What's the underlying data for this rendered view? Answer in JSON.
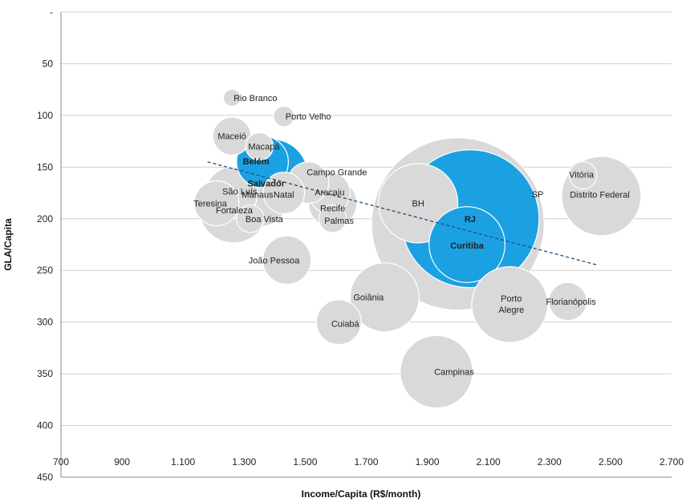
{
  "chart_data": {
    "type": "bubble",
    "xlabel": "Income/Capita  (R$/month)",
    "ylabel": "GLA/Capita",
    "xlim": [
      700,
      2700
    ],
    "ylim": [
      0,
      450
    ],
    "y_reversed": true,
    "x_ticks": [
      "700",
      "900",
      "1.100",
      "1.300",
      "1.500",
      "1.700",
      "1.900",
      "2.100",
      "2.300",
      "2.500",
      "2.700"
    ],
    "y_ticks": [
      "-",
      "50",
      "100",
      "150",
      "200",
      "250",
      "300",
      "350",
      "400",
      "450"
    ],
    "x_tick_values": [
      700,
      900,
      1100,
      1300,
      1500,
      1700,
      1900,
      2100,
      2300,
      2500,
      2700
    ],
    "y_tick_values": [
      0,
      50,
      100,
      150,
      200,
      250,
      300,
      350,
      400,
      450
    ],
    "grid": "horizontal",
    "trendline": {
      "style": "dashed",
      "color": "#1f4e79",
      "x": [
        1180,
        2460
      ],
      "y": [
        145,
        245
      ]
    },
    "colors": {
      "gray": "#d9d9d9",
      "highlight": "#1ba1e2",
      "grid": "#d0d0d0"
    },
    "points": [
      {
        "name": "SP",
        "x": 2000,
        "y": 205,
        "size": 50,
        "color": "gray"
      },
      {
        "name": "RJ",
        "x": 2040,
        "y": 200,
        "size": 40,
        "color": "highlight"
      },
      {
        "name": "BH",
        "x": 1870,
        "y": 185,
        "size": 23,
        "color": "gray"
      },
      {
        "name": "Curitiba",
        "x": 2030,
        "y": 225,
        "size": 22,
        "color": "highlight"
      },
      {
        "name": "Distrito Federal",
        "x": 2470,
        "y": 178,
        "size": 23,
        "color": "gray"
      },
      {
        "name": "Vitória",
        "x": 2410,
        "y": 158,
        "size": 8,
        "color": "gray"
      },
      {
        "name": "Porto Alegre",
        "x": 2170,
        "y": 283,
        "size": 22,
        "color": "gray"
      },
      {
        "name": "Florianópolis",
        "x": 2360,
        "y": 280,
        "size": 11,
        "color": "gray"
      },
      {
        "name": "Campinas",
        "x": 1930,
        "y": 348,
        "size": 21,
        "color": "gray"
      },
      {
        "name": "Goiânia",
        "x": 1760,
        "y": 276,
        "size": 20,
        "color": "gray"
      },
      {
        "name": "Cuiabá",
        "x": 1610,
        "y": 300,
        "size": 13,
        "color": "gray"
      },
      {
        "name": "João Pessoa",
        "x": 1440,
        "y": 240,
        "size": 14,
        "color": "gray"
      },
      {
        "name": "Palmas",
        "x": 1590,
        "y": 200,
        "size": 8,
        "color": "gray"
      },
      {
        "name": "Recife",
        "x": 1590,
        "y": 185,
        "size": 14,
        "color": "gray"
      },
      {
        "name": "Aracaju",
        "x": 1580,
        "y": 175,
        "size": 12,
        "color": "gray"
      },
      {
        "name": "Campo Grande",
        "x": 1510,
        "y": 165,
        "size": 12,
        "color": "gray"
      },
      {
        "name": "Natal",
        "x": 1430,
        "y": 175,
        "size": 12,
        "color": "gray"
      },
      {
        "name": "Manaus",
        "x": 1345,
        "y": 178,
        "size": 18,
        "color": "gray"
      },
      {
        "name": "Boa Vista",
        "x": 1320,
        "y": 200,
        "size": 8,
        "color": "gray"
      },
      {
        "name": "Fortaleza",
        "x": 1265,
        "y": 190,
        "size": 20,
        "color": "gray"
      },
      {
        "name": "São Luís",
        "x": 1260,
        "y": 175,
        "size": 15,
        "color": "gray"
      },
      {
        "name": "Teresina",
        "x": 1210,
        "y": 185,
        "size": 13,
        "color": "gray"
      },
      {
        "name": "Salvador",
        "x": 1390,
        "y": 158,
        "size": 21,
        "color": "highlight"
      },
      {
        "name": "Belém",
        "x": 1360,
        "y": 145,
        "size": 15,
        "color": "highlight"
      },
      {
        "name": "Macapá",
        "x": 1350,
        "y": 130,
        "size": 8,
        "color": "gray"
      },
      {
        "name": "Maceió",
        "x": 1260,
        "y": 120,
        "size": 11,
        "color": "gray"
      },
      {
        "name": "Porto Velho",
        "x": 1430,
        "y": 101,
        "size": 6,
        "color": "gray"
      },
      {
        "name": "Rio Branco",
        "x": 1260,
        "y": 83,
        "size": 5,
        "color": "gray"
      }
    ]
  }
}
